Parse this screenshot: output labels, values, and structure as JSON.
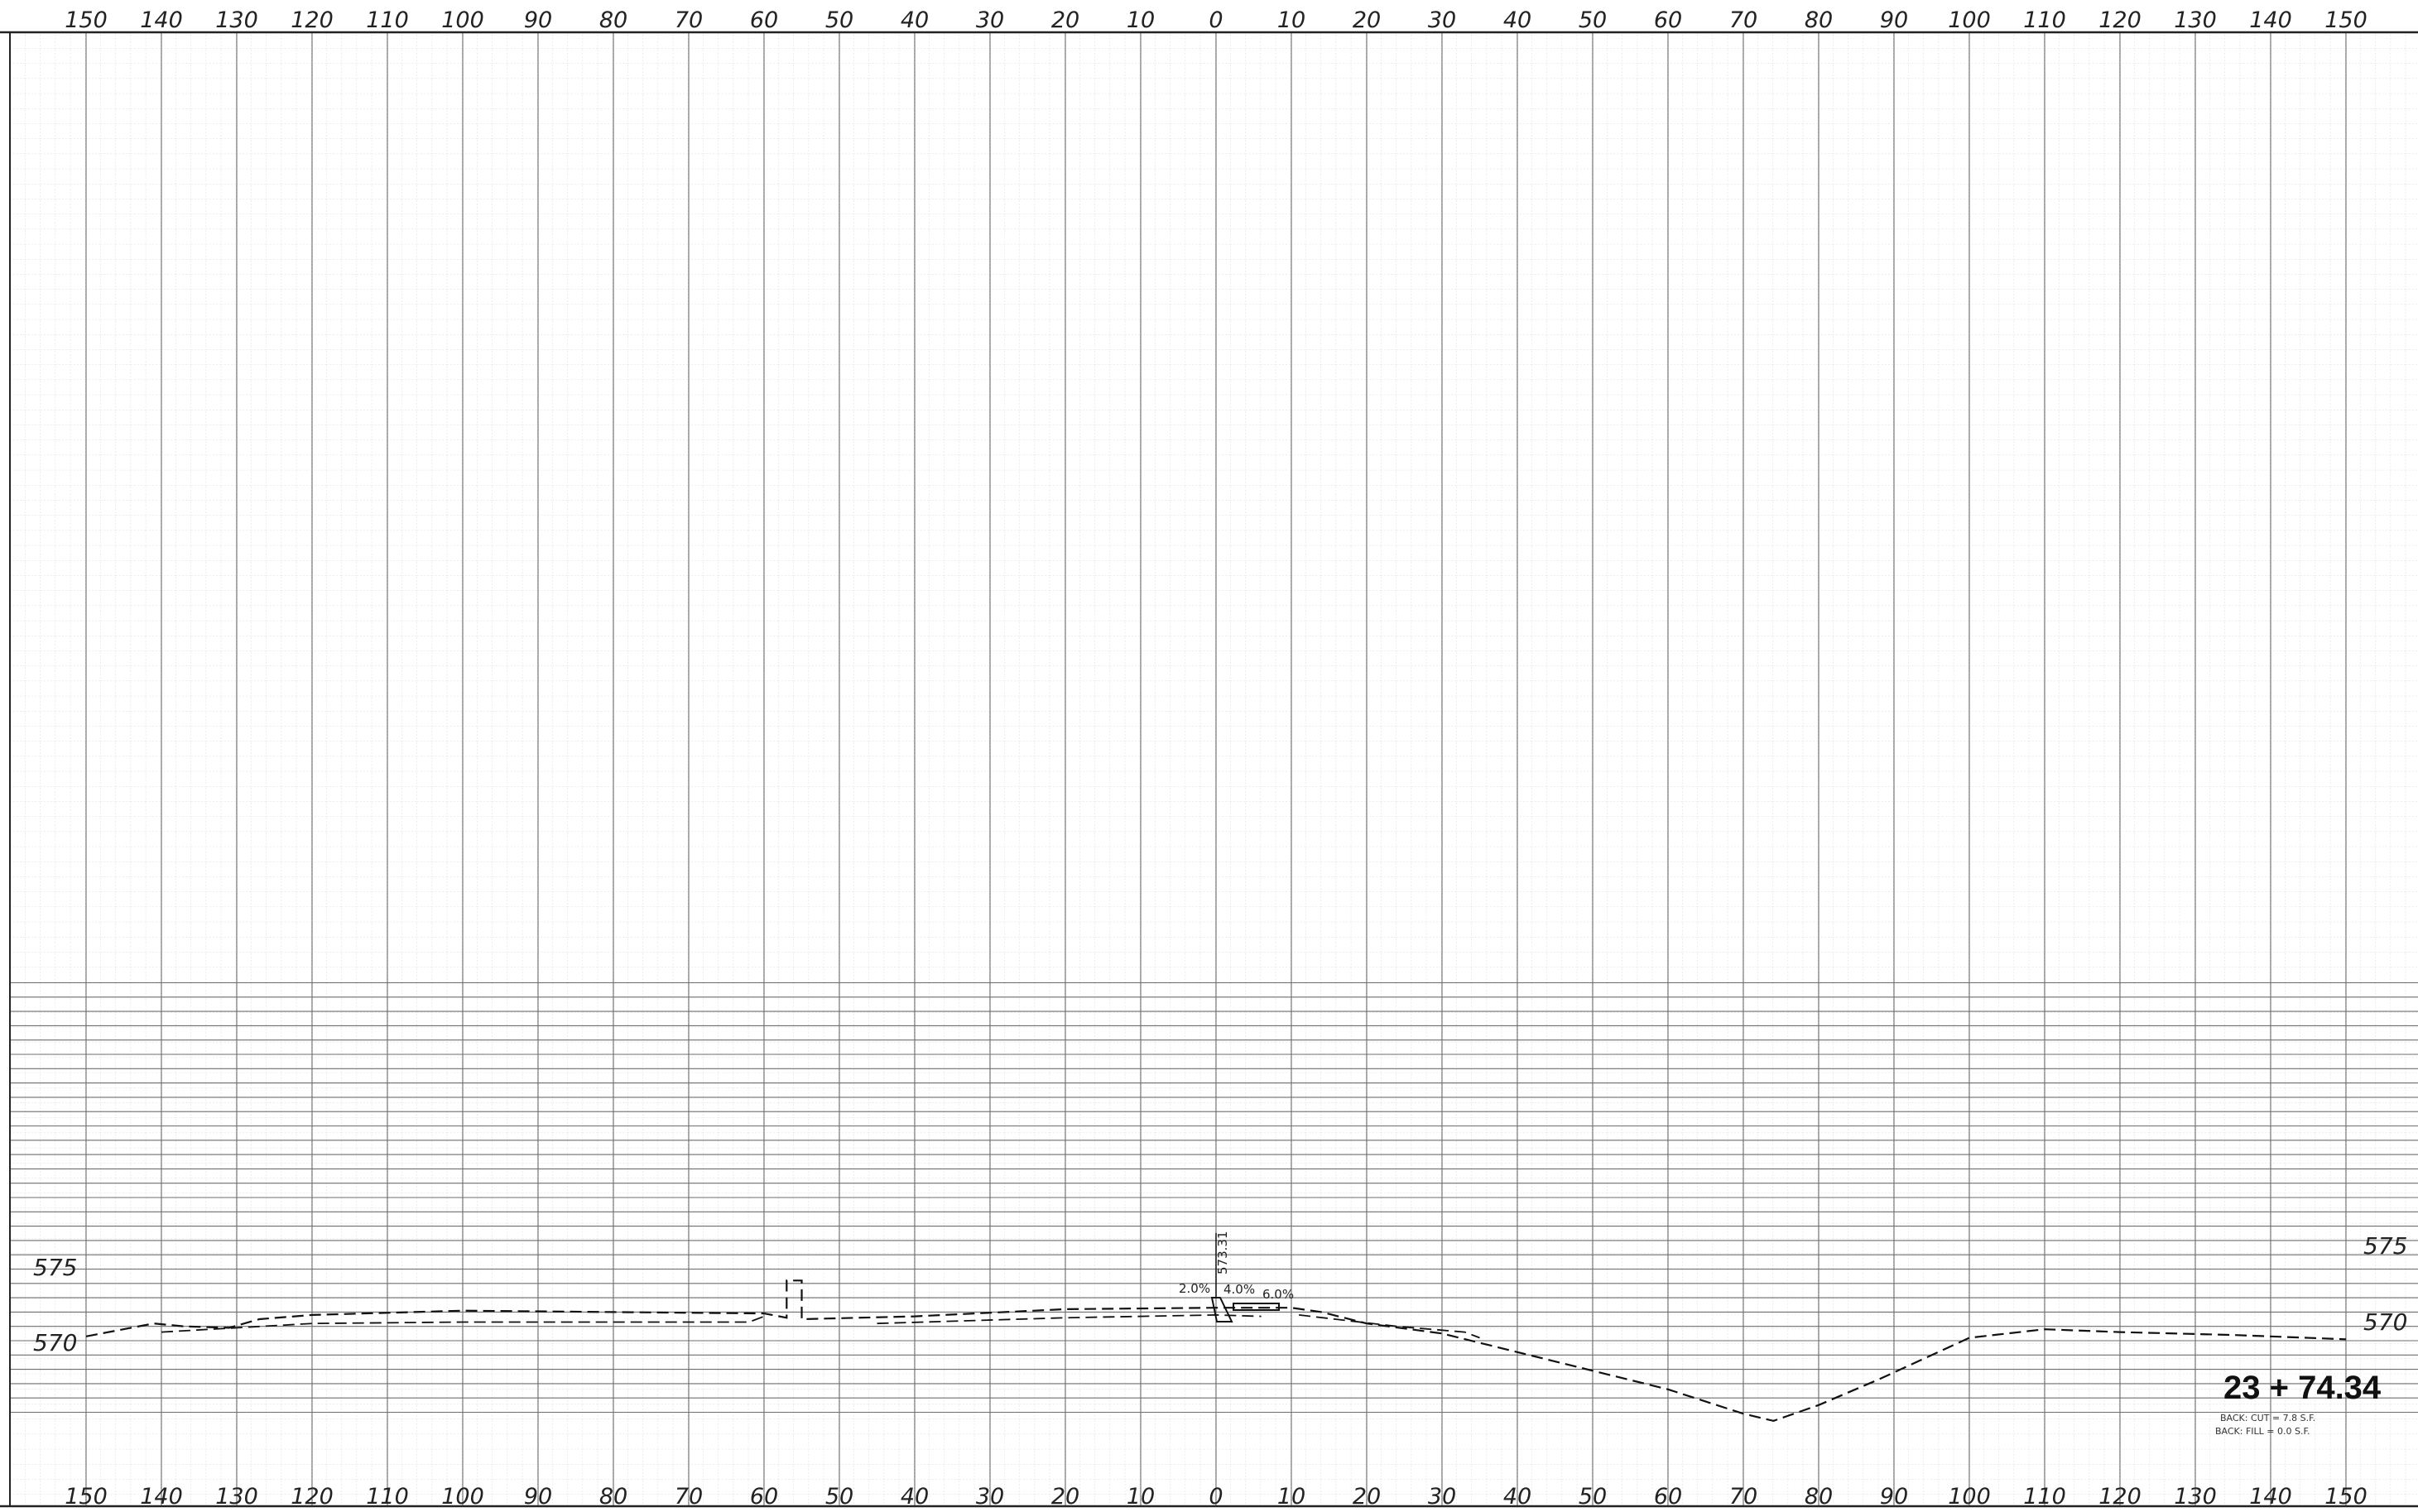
{
  "chart_data": {
    "type": "line",
    "title": "",
    "xlabel": "",
    "ylabel": "",
    "x_ticks_top": [
      "150",
      "140",
      "130",
      "120",
      "110",
      "100",
      "90",
      "80",
      "70",
      "60",
      "50",
      "40",
      "30",
      "20",
      "10",
      "0",
      "10",
      "20",
      "30",
      "40",
      "50",
      "60",
      "70",
      "80",
      "90",
      "100",
      "110",
      "120",
      "130",
      "140",
      "150"
    ],
    "x_ticks_bottom": [
      "150",
      "140",
      "130",
      "120",
      "110",
      "100",
      "90",
      "80",
      "70",
      "60",
      "50",
      "40",
      "30",
      "20",
      "10",
      "0",
      "10",
      "20",
      "30",
      "40",
      "50",
      "60",
      "70",
      "80",
      "90",
      "100",
      "110",
      "120",
      "130",
      "140",
      "150"
    ],
    "x_values": [
      -150,
      -140,
      -130,
      -120,
      -110,
      -100,
      -90,
      -80,
      -70,
      -60,
      -50,
      -40,
      -30,
      -20,
      -10,
      0,
      10,
      20,
      30,
      40,
      50,
      60,
      70,
      80,
      90,
      100,
      110,
      120,
      130,
      140,
      150
    ],
    "xlim": [
      -150,
      150
    ],
    "ylim": [
      565,
      595
    ],
    "y_labels_left": [
      {
        "value": 575,
        "text": "575"
      },
      {
        "value": 570,
        "text": "570"
      }
    ],
    "y_labels_right": [
      {
        "value": 575,
        "text": "575"
      },
      {
        "value": 570,
        "text": "570"
      }
    ],
    "grid": true,
    "series": [
      {
        "style": "dashed",
        "points": [
          [
            -150,
            570.3
          ],
          [
            -141,
            571.2
          ],
          [
            -137,
            571.0
          ],
          [
            -131,
            570.9
          ],
          [
            -127,
            571.5
          ],
          [
            -120,
            571.8
          ],
          [
            -100,
            572.1
          ],
          [
            -80,
            572.0
          ],
          [
            -60,
            571.9
          ],
          [
            -57,
            571.6
          ],
          [
            -57,
            574.2
          ],
          [
            -55,
            574.2
          ],
          [
            -55,
            571.5
          ],
          [
            -40,
            571.7
          ],
          [
            -20,
            572.2
          ],
          [
            0,
            572.3
          ],
          [
            10,
            572.3
          ],
          [
            14,
            572.0
          ],
          [
            20,
            571.2
          ],
          [
            30,
            570.5
          ],
          [
            40,
            569.2
          ],
          [
            50,
            567.9
          ],
          [
            60,
            566.6
          ],
          [
            70,
            564.9
          ],
          [
            74,
            564.4
          ],
          [
            80,
            565.5
          ],
          [
            88,
            567.3
          ],
          [
            100,
            570.2
          ],
          [
            110,
            570.8
          ],
          [
            120,
            570.6
          ],
          [
            135,
            570.4
          ],
          [
            150,
            570.1
          ]
        ]
      },
      {
        "style": "dashed",
        "points": [
          [
            -140,
            570.6
          ],
          [
            -120,
            571.2
          ],
          [
            -100,
            571.3
          ],
          [
            -80,
            571.3
          ],
          [
            -62,
            571.3
          ],
          [
            -60,
            571.7
          ]
        ]
      },
      {
        "style": "dashed",
        "points": [
          [
            -45,
            571.2
          ],
          [
            -20,
            571.6
          ],
          [
            0,
            571.8
          ],
          [
            6,
            571.7
          ]
        ]
      },
      {
        "style": "dashed",
        "points": [
          [
            11,
            571.8
          ],
          [
            24,
            571.0
          ],
          [
            33,
            570.6
          ],
          [
            35,
            570.2
          ]
        ]
      }
    ],
    "annotations": [
      {
        "text": "573.31",
        "x": 0.4,
        "y": 573.3
      },
      {
        "text": "2.0%",
        "x": -3.5,
        "y": 572.3
      },
      {
        "text": "4.0%",
        "x": 2.5,
        "y": 572.2
      },
      {
        "text": "6.0%",
        "x": 8.2,
        "y": 572.0
      }
    ],
    "station": "23 + 74.34",
    "notes": [
      "BACK: CUT = 7.8 S.F.",
      "BACK: FILL = 0.0 S.F."
    ]
  }
}
